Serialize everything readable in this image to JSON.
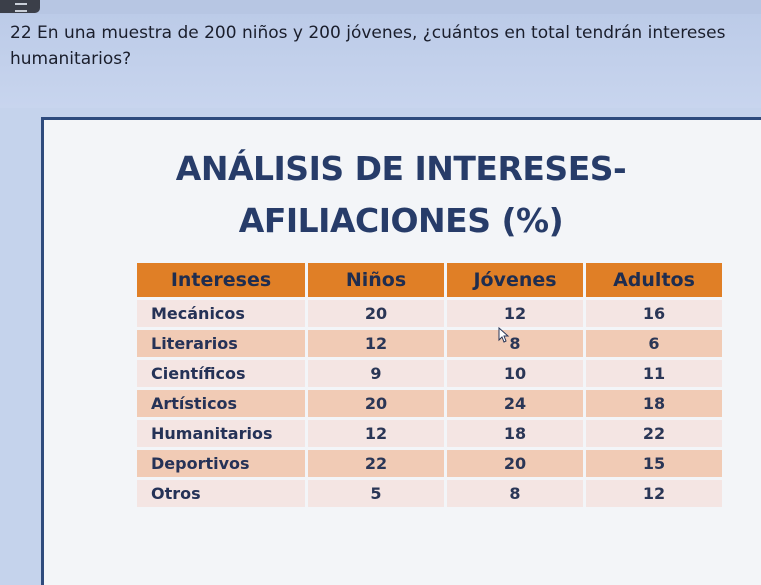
{
  "question": {
    "number": "22",
    "text": "En una muestra de 200 niños y 200 jóvenes, ¿cuántos en total tendrán intereses humanitarios?"
  },
  "title": {
    "line1": "ANÁLISIS DE INTERESES-",
    "line2": "AFILIACIONES (%)"
  },
  "table": {
    "headers": [
      "Intereses",
      "Niños",
      "Jóvenes",
      "Adultos"
    ],
    "rows": [
      [
        "Mecánicos",
        "20",
        "12",
        "16"
      ],
      [
        "Literarios",
        "12",
        "8",
        "6"
      ],
      [
        "Científicos",
        "9",
        "10",
        "11"
      ],
      [
        "Artísticos",
        "20",
        "24",
        "18"
      ],
      [
        "Humanitarios",
        "12",
        "18",
        "22"
      ],
      [
        "Deportivos",
        "22",
        "20",
        "15"
      ],
      [
        "Otros",
        "5",
        "8",
        "12"
      ]
    ]
  },
  "colors": {
    "header_bg": "#e07f26",
    "row_light": "#f4e5e3",
    "row_dark": "#f1cbb5",
    "title_color": "#273c69",
    "frame_border": "#2e4b7d"
  },
  "icons": [
    "menu-icon",
    "mouse-pointer-icon"
  ]
}
